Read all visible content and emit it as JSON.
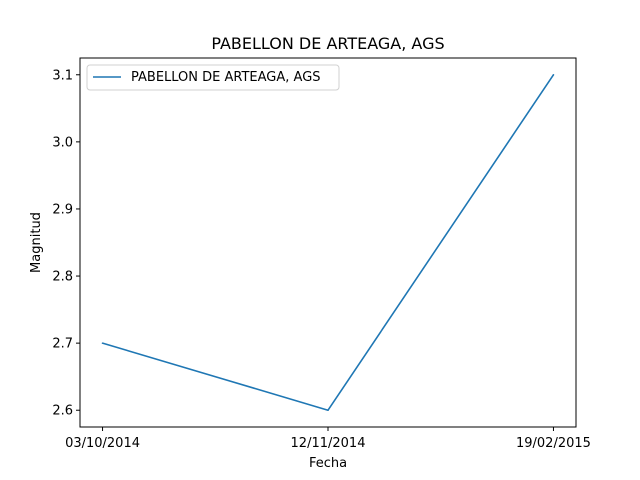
{
  "chart_data": {
    "type": "line",
    "title": "PABELLON DE ARTEAGA, AGS",
    "xlabel": "Fecha",
    "ylabel": "Magnitud",
    "categories": [
      "03/10/2014",
      "12/11/2014",
      "19/02/2015"
    ],
    "series": [
      {
        "name": "PABELLON DE ARTEAGA, AGS",
        "values": [
          2.7,
          2.6,
          3.1
        ],
        "color": "#1f77b4"
      }
    ],
    "ylim": [
      2.575,
      3.125
    ],
    "yticks": [
      2.6,
      2.7,
      2.8,
      2.9,
      3.0,
      3.1
    ],
    "ytick_labels": [
      "2.6",
      "2.7",
      "2.8",
      "2.9",
      "3.0",
      "3.1"
    ],
    "grid": false,
    "legend": "upper-left"
  }
}
